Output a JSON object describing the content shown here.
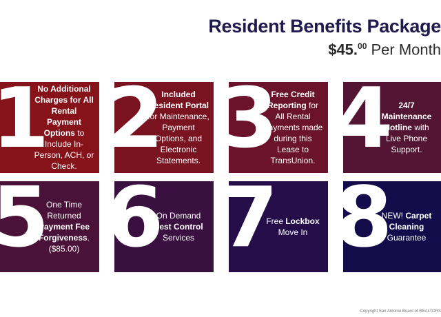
{
  "header": {
    "title": "Resident Benefits Package",
    "price_amount": "$45.",
    "price_cents": "00",
    "price_period": " Per Month"
  },
  "colors": {
    "title": "#1f1b4d",
    "card_top_left": "#8a1015",
    "card_bottom_right": "#140c4a"
  },
  "cards": [
    {
      "number": "1",
      "bold1": "No Additional Charges for All Rental Payment Options",
      "rest1": " to Include In-Person, ACH, or Check."
    },
    {
      "number": "2",
      "bold1": "Included Resident Portal",
      "rest1": " for Maintenance, Payment Options, and Electronic Statements."
    },
    {
      "number": "3",
      "bold1": "Free Credit Reporting",
      "rest1": " for All Rental Payments made during this Lease to TransUnion."
    },
    {
      "number": "4",
      "bold1": "24/7 Maintenance Hotline",
      "rest1": " with Live Phone Support."
    },
    {
      "number": "5",
      "pre": "One Time Returned ",
      "bold1": "Payment Fee Forgiveness",
      "rest1": ". ($85.00)"
    },
    {
      "number": "6",
      "pre": "On Demand ",
      "bold1": "Pest Control",
      "rest1": " Services"
    },
    {
      "number": "7",
      "pre": "Free ",
      "bold1": "Lockbox",
      "rest1": " Move In"
    },
    {
      "number": "8",
      "pre": "NEW! ",
      "bold1": "Carpet Cleaning",
      "rest1": " Guarantee"
    }
  ],
  "copyright": "Copyright San Antonio Board of REALTORS"
}
